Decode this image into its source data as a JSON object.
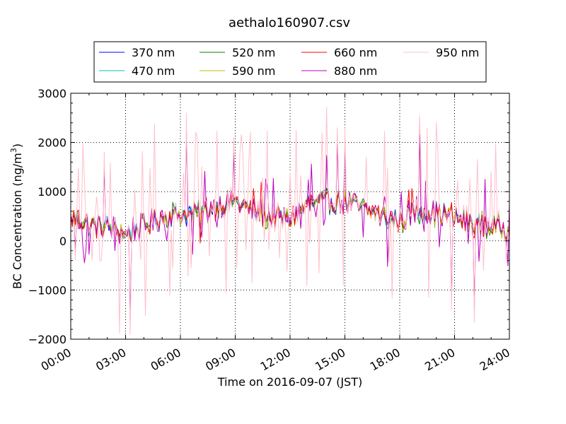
{
  "chart_data": {
    "type": "line",
    "title": "aethalo160907.csv",
    "xlabel": "Time on 2016-09-07 (JST)",
    "ylabel": "BC Concentration (ng/m³)",
    "ylabel_parts": {
      "main": "BC Concentration (ng/m",
      "superscript": "3",
      "close": ")"
    },
    "xlim": [
      "00:00",
      "24:00"
    ],
    "ylim": [
      -2000,
      3000
    ],
    "x_ticks": [
      "00:00",
      "03:00",
      "06:00",
      "09:00",
      "12:00",
      "15:00",
      "18:00",
      "21:00",
      "24:00"
    ],
    "y_ticks": [
      -2000,
      -1000,
      0,
      1000,
      2000,
      3000
    ],
    "y_tick_labels": [
      "−2000",
      "−1000",
      "0",
      "1000",
      "2000",
      "3000"
    ],
    "grid": true,
    "legend_position": "top-center",
    "legend_columns": 4,
    "series": [
      {
        "name": "370 nm",
        "color": "#0000ff",
        "seed": 11,
        "noise": 0.9,
        "spikes": 0.0
      },
      {
        "name": "470 nm",
        "color": "#00bfbf",
        "seed": 23,
        "noise": 0.95,
        "spikes": 0.0
      },
      {
        "name": "520 nm",
        "color": "#008000",
        "seed": 37,
        "noise": 1.0,
        "spikes": 0.1
      },
      {
        "name": "590 nm",
        "color": "#bfbf00",
        "seed": 41,
        "noise": 1.05,
        "spikes": 0.1
      },
      {
        "name": "660 nm",
        "color": "#ff0000",
        "seed": 53,
        "noise": 1.1,
        "spikes": 0.2
      },
      {
        "name": "880 nm",
        "color": "#bf00bf",
        "seed": 67,
        "noise": 1.3,
        "spikes": 0.45
      },
      {
        "name": "950 nm",
        "color": "#ffc0cb",
        "seed": 79,
        "noise": 1.6,
        "spikes": 1.0
      }
    ],
    "profile_hours": [
      0,
      1,
      2,
      3,
      4,
      5,
      6,
      7,
      8,
      9,
      10,
      11,
      12,
      13,
      14,
      15,
      16,
      17,
      18,
      19,
      20,
      21,
      22,
      23,
      24
    ],
    "profile_mean": [
      500,
      350,
      300,
      150,
      300,
      500,
      550,
      550,
      700,
      800,
      600,
      450,
      450,
      750,
      800,
      800,
      650,
      500,
      400,
      650,
      550,
      500,
      350,
      300,
      250
    ],
    "highlight_peaks": [
      {
        "hour": 1.85,
        "value": 1800
      },
      {
        "hour": 3.25,
        "value": -1900
      },
      {
        "hour": 6.3,
        "value": 2600
      },
      {
        "hour": 8.9,
        "value": 2100
      },
      {
        "hour": 14.6,
        "value": 2300
      },
      {
        "hour": 15.0,
        "value": 2300
      },
      {
        "hour": 19.1,
        "value": 2550
      },
      {
        "hour": 20.85,
        "value": -1400
      },
      {
        "hour": 22.1,
        "value": -1650
      }
    ]
  }
}
